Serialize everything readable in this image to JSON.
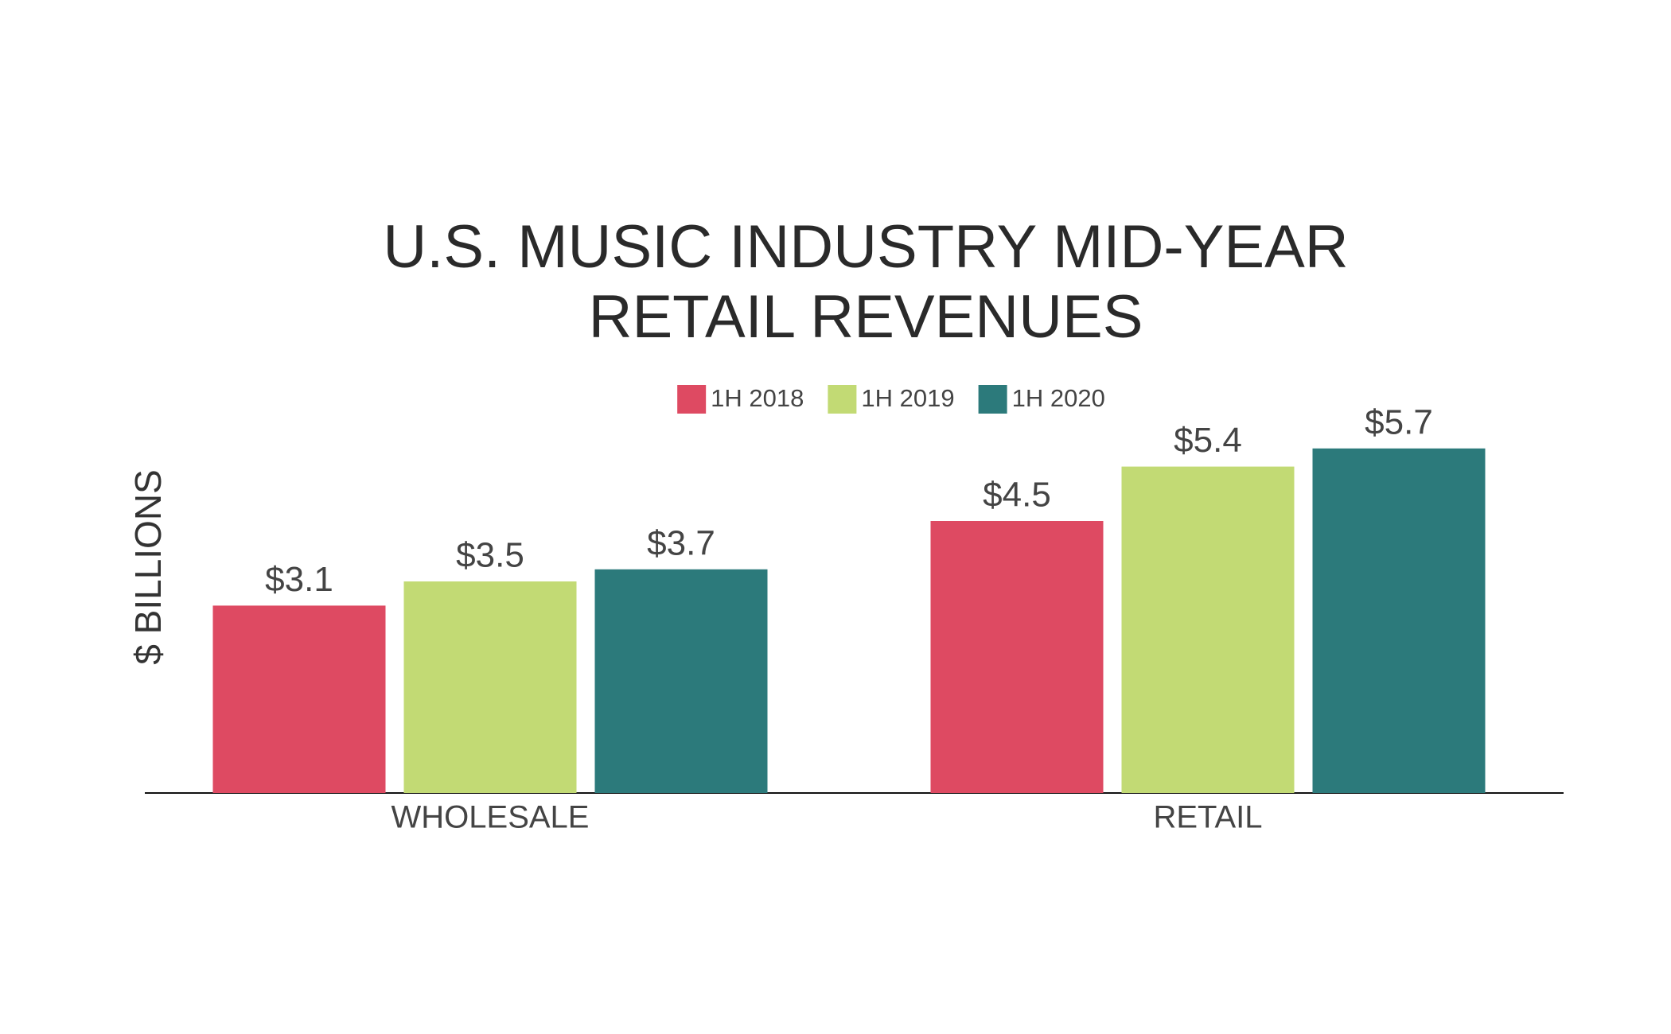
{
  "chart_data": {
    "type": "bar",
    "title": [
      "U.S. MUSIC INDUSTRY MID-YEAR",
      "RETAIL REVENUES"
    ],
    "y_label": "$ BILLIONS",
    "categories": [
      "WHOLESALE",
      "RETAIL"
    ],
    "series": [
      {
        "name": "1H 2018",
        "color": "#de4a62",
        "values": [
          3.1,
          4.5
        ],
        "value_labels": [
          "$3.1",
          "$4.5"
        ]
      },
      {
        "name": "1H 2019",
        "color": "#c2da74",
        "values": [
          3.5,
          5.4
        ],
        "value_labels": [
          "$3.5",
          "$5.4"
        ]
      },
      {
        "name": "1H 2020",
        "color": "#2c7a7b",
        "values": [
          3.7,
          5.7
        ],
        "value_labels": [
          "$3.7",
          "$5.7"
        ]
      }
    ],
    "ylim": [
      0,
      7
    ],
    "legend": "top"
  }
}
